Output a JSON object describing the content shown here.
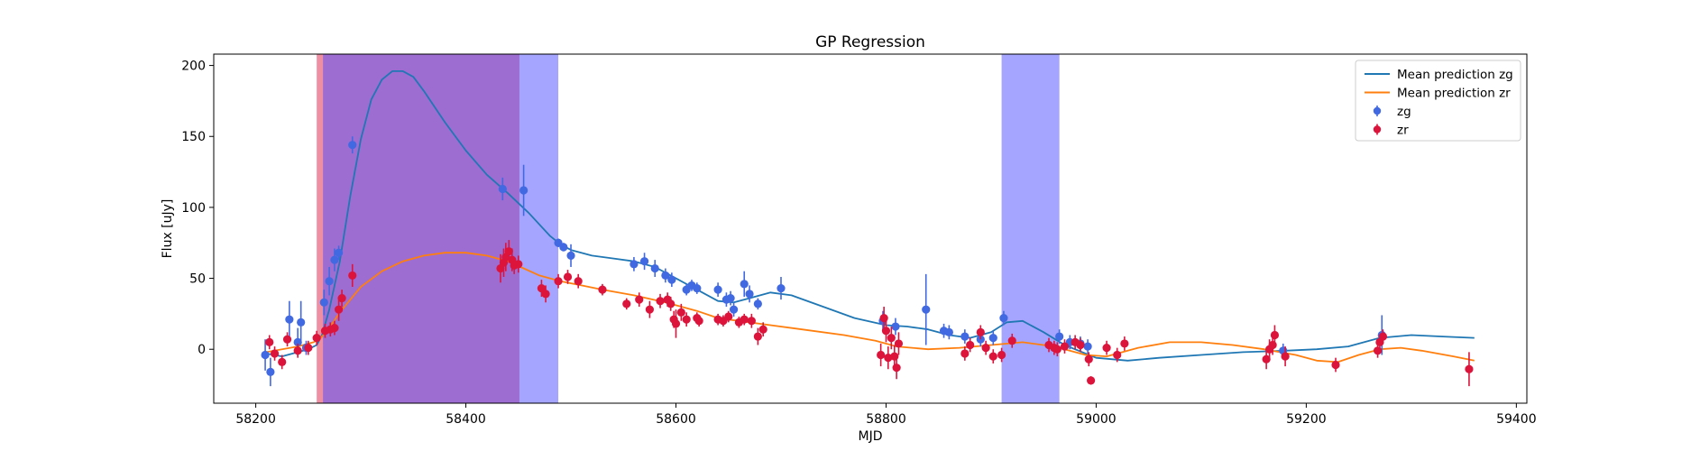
{
  "chart_data": {
    "type": "scatter",
    "title": "GP Regression",
    "xlabel": "MJD",
    "ylabel": "Flux [uJy]",
    "xlim": [
      58160,
      59410
    ],
    "ylim": [
      -38,
      208
    ],
    "xticks": [
      58200,
      58400,
      58600,
      58800,
      59000,
      59200,
      59400
    ],
    "yticks": [
      0,
      50,
      100,
      150,
      200
    ],
    "grid": false,
    "legend": {
      "position": "top-right",
      "entries": [
        {
          "label": "Mean prediction zg",
          "kind": "line",
          "color": "#1f77b4"
        },
        {
          "label": "Mean prediction zr",
          "kind": "line",
          "color": "#ff7f0e"
        },
        {
          "label": "zg",
          "kind": "marker",
          "color": "#4169e1"
        },
        {
          "label": "zr",
          "kind": "marker",
          "color": "#dc143c"
        }
      ]
    },
    "shaded_regions": [
      {
        "x0": 58258,
        "x1": 58451,
        "color": "#e0204a",
        "opacity": 0.5
      },
      {
        "x0": 58264,
        "x1": 58488,
        "color": "#4b4bff",
        "opacity": 0.5
      },
      {
        "x0": 58910,
        "x1": 58965,
        "color": "#4b4bff",
        "opacity": 0.5
      }
    ],
    "lines": [
      {
        "name": "Mean prediction zg",
        "color": "#1f77b4",
        "points": [
          [
            58210,
            -3
          ],
          [
            58225,
            -5
          ],
          [
            58240,
            -2
          ],
          [
            58250,
            0
          ],
          [
            58258,
            3
          ],
          [
            58263,
            10
          ],
          [
            58270,
            28
          ],
          [
            58280,
            62
          ],
          [
            58290,
            108
          ],
          [
            58300,
            148
          ],
          [
            58310,
            176
          ],
          [
            58320,
            190
          ],
          [
            58330,
            196
          ],
          [
            58340,
            196
          ],
          [
            58350,
            192
          ],
          [
            58360,
            182
          ],
          [
            58380,
            160
          ],
          [
            58400,
            140
          ],
          [
            58420,
            123
          ],
          [
            58440,
            110
          ],
          [
            58460,
            96
          ],
          [
            58480,
            80
          ],
          [
            58490,
            74
          ],
          [
            58500,
            70
          ],
          [
            58520,
            66
          ],
          [
            58540,
            64
          ],
          [
            58560,
            62
          ],
          [
            58580,
            58
          ],
          [
            58600,
            50
          ],
          [
            58620,
            42
          ],
          [
            58640,
            34
          ],
          [
            58655,
            33
          ],
          [
            58670,
            36
          ],
          [
            58690,
            40
          ],
          [
            58710,
            38
          ],
          [
            58740,
            30
          ],
          [
            58770,
            22
          ],
          [
            58800,
            17
          ],
          [
            58820,
            16
          ],
          [
            58840,
            14
          ],
          [
            58860,
            10
          ],
          [
            58880,
            8
          ],
          [
            58900,
            12
          ],
          [
            58915,
            19
          ],
          [
            58930,
            20
          ],
          [
            58950,
            12
          ],
          [
            58970,
            3
          ],
          [
            59000,
            -6
          ],
          [
            59030,
            -8
          ],
          [
            59060,
            -6
          ],
          [
            59100,
            -4
          ],
          [
            59140,
            -2
          ],
          [
            59180,
            -1
          ],
          [
            59210,
            0
          ],
          [
            59240,
            2
          ],
          [
            59270,
            8
          ],
          [
            59300,
            10
          ],
          [
            59330,
            9
          ],
          [
            59360,
            8
          ]
        ]
      },
      {
        "name": "Mean prediction zr",
        "color": "#ff7f0e",
        "points": [
          [
            58210,
            -2
          ],
          [
            58225,
            0
          ],
          [
            58240,
            2
          ],
          [
            58255,
            5
          ],
          [
            58262,
            8
          ],
          [
            58270,
            15
          ],
          [
            58280,
            26
          ],
          [
            58300,
            44
          ],
          [
            58320,
            55
          ],
          [
            58340,
            62
          ],
          [
            58360,
            66
          ],
          [
            58380,
            68
          ],
          [
            58400,
            68
          ],
          [
            58420,
            66
          ],
          [
            58440,
            62
          ],
          [
            58455,
            57
          ],
          [
            58470,
            52
          ],
          [
            58490,
            48
          ],
          [
            58510,
            45
          ],
          [
            58530,
            42
          ],
          [
            58560,
            38
          ],
          [
            58590,
            33
          ],
          [
            58620,
            27
          ],
          [
            58640,
            22
          ],
          [
            58660,
            20
          ],
          [
            58690,
            17
          ],
          [
            58720,
            14
          ],
          [
            58760,
            10
          ],
          [
            58790,
            6
          ],
          [
            58810,
            2
          ],
          [
            58840,
            0
          ],
          [
            58870,
            1
          ],
          [
            58900,
            3
          ],
          [
            58930,
            5
          ],
          [
            58960,
            2
          ],
          [
            58990,
            -4
          ],
          [
            59010,
            -5
          ],
          [
            59040,
            1
          ],
          [
            59070,
            5
          ],
          [
            59100,
            5
          ],
          [
            59130,
            3
          ],
          [
            59160,
            0
          ],
          [
            59190,
            -4
          ],
          [
            59210,
            -8
          ],
          [
            59230,
            -9
          ],
          [
            59250,
            -4
          ],
          [
            59270,
            0
          ],
          [
            59290,
            1
          ],
          [
            59310,
            -1
          ],
          [
            59340,
            -5
          ],
          [
            59360,
            -8
          ]
        ]
      }
    ],
    "series": [
      {
        "name": "zg",
        "color": "#4169e1",
        "points": [
          [
            58209,
            -4,
            11
          ],
          [
            58214,
            -16,
            10
          ],
          [
            58232,
            21,
            13
          ],
          [
            58240,
            5,
            10
          ],
          [
            58243,
            19,
            15
          ],
          [
            58248,
            1,
            5
          ],
          [
            58265,
            33,
            9
          ],
          [
            58270,
            48,
            10
          ],
          [
            58275,
            63,
            8
          ],
          [
            58279,
            68,
            5
          ],
          [
            58292,
            144,
            6
          ],
          [
            58435,
            113,
            8
          ],
          [
            58455,
            112,
            18
          ],
          [
            58488,
            75,
            3
          ],
          [
            58493,
            72,
            3
          ],
          [
            58500,
            66,
            8
          ],
          [
            58560,
            60,
            5
          ],
          [
            58570,
            62,
            6
          ],
          [
            58580,
            57,
            6
          ],
          [
            58590,
            52,
            5
          ],
          [
            58596,
            49,
            5
          ],
          [
            58610,
            42,
            4
          ],
          [
            58615,
            45,
            4
          ],
          [
            58620,
            43,
            4
          ],
          [
            58640,
            42,
            5
          ],
          [
            58648,
            35,
            5
          ],
          [
            58652,
            36,
            5
          ],
          [
            58655,
            28,
            5
          ],
          [
            58665,
            46,
            9
          ],
          [
            58670,
            39,
            6
          ],
          [
            58678,
            32,
            4
          ],
          [
            58700,
            43,
            8
          ],
          [
            58797,
            20,
            7
          ],
          [
            58809,
            16,
            6
          ],
          [
            58838,
            28,
            25
          ],
          [
            58855,
            13,
            5
          ],
          [
            58860,
            12,
            5
          ],
          [
            58875,
            9,
            5
          ],
          [
            58890,
            7,
            5
          ],
          [
            58902,
            8,
            5
          ],
          [
            58912,
            22,
            5
          ],
          [
            58965,
            9,
            5
          ],
          [
            58975,
            5,
            5
          ],
          [
            58985,
            4,
            5
          ],
          [
            58992,
            2,
            5
          ],
          [
            59178,
            -1,
            5
          ],
          [
            59272,
            10,
            14
          ]
        ]
      },
      {
        "name": "zr",
        "color": "#dc143c",
        "points": [
          [
            58213,
            5,
            5
          ],
          [
            58218,
            -3,
            5
          ],
          [
            58225,
            -9,
            5
          ],
          [
            58230,
            7,
            5
          ],
          [
            58240,
            -1,
            5
          ],
          [
            58250,
            1,
            5
          ],
          [
            58258,
            8,
            5
          ],
          [
            58266,
            13,
            5
          ],
          [
            58271,
            14,
            5
          ],
          [
            58275,
            15,
            5
          ],
          [
            58279,
            28,
            8
          ],
          [
            58282,
            36,
            6
          ],
          [
            58292,
            52,
            8
          ],
          [
            58433,
            57,
            10
          ],
          [
            58436,
            61,
            10
          ],
          [
            58438,
            65,
            10
          ],
          [
            58441,
            69,
            8
          ],
          [
            58444,
            63,
            8
          ],
          [
            58446,
            59,
            6
          ],
          [
            58450,
            60,
            6
          ],
          [
            58472,
            43,
            6
          ],
          [
            58476,
            39,
            6
          ],
          [
            58488,
            48,
            5
          ],
          [
            58497,
            51,
            5
          ],
          [
            58507,
            48,
            5
          ],
          [
            58530,
            42,
            4
          ],
          [
            58553,
            32,
            4
          ],
          [
            58565,
            35,
            5
          ],
          [
            58575,
            28,
            6
          ],
          [
            58585,
            34,
            5
          ],
          [
            58592,
            35,
            5
          ],
          [
            58595,
            32,
            5
          ],
          [
            58598,
            21,
            6
          ],
          [
            58600,
            18,
            10
          ],
          [
            58605,
            26,
            6
          ],
          [
            58610,
            21,
            5
          ],
          [
            58620,
            22,
            4
          ],
          [
            58622,
            20,
            4
          ],
          [
            58640,
            21,
            4
          ],
          [
            58645,
            20,
            4
          ],
          [
            58650,
            23,
            4
          ],
          [
            58660,
            19,
            4
          ],
          [
            58665,
            21,
            4
          ],
          [
            58672,
            20,
            5
          ],
          [
            58678,
            9,
            6
          ],
          [
            58683,
            14,
            5
          ],
          [
            58795,
            -4,
            8
          ],
          [
            58798,
            22,
            8
          ],
          [
            58800,
            13,
            8
          ],
          [
            58802,
            -6,
            8
          ],
          [
            58805,
            8,
            8
          ],
          [
            58808,
            -5,
            8
          ],
          [
            58810,
            -13,
            8
          ],
          [
            58812,
            4,
            8
          ],
          [
            58875,
            -3,
            5
          ],
          [
            58880,
            3,
            5
          ],
          [
            58890,
            12,
            5
          ],
          [
            58895,
            1,
            5
          ],
          [
            58902,
            -5,
            5
          ],
          [
            58910,
            -4,
            5
          ],
          [
            58920,
            6,
            5
          ],
          [
            58955,
            3,
            5
          ],
          [
            58960,
            1,
            5
          ],
          [
            58963,
            0,
            5
          ],
          [
            58970,
            2,
            5
          ],
          [
            58980,
            5,
            5
          ],
          [
            58985,
            3,
            5
          ],
          [
            58993,
            -7,
            5
          ],
          [
            58995,
            -22,
            3
          ],
          [
            59010,
            1,
            5
          ],
          [
            59020,
            -4,
            5
          ],
          [
            59027,
            4,
            5
          ],
          [
            59162,
            -7,
            7
          ],
          [
            59165,
            0,
            7
          ],
          [
            59168,
            3,
            7
          ],
          [
            59170,
            10,
            7
          ],
          [
            59180,
            -5,
            7
          ],
          [
            59228,
            -11,
            5
          ],
          [
            59268,
            -1,
            5
          ],
          [
            59270,
            5,
            5
          ],
          [
            59273,
            9,
            5
          ],
          [
            59355,
            -14,
            12
          ]
        ]
      }
    ]
  }
}
